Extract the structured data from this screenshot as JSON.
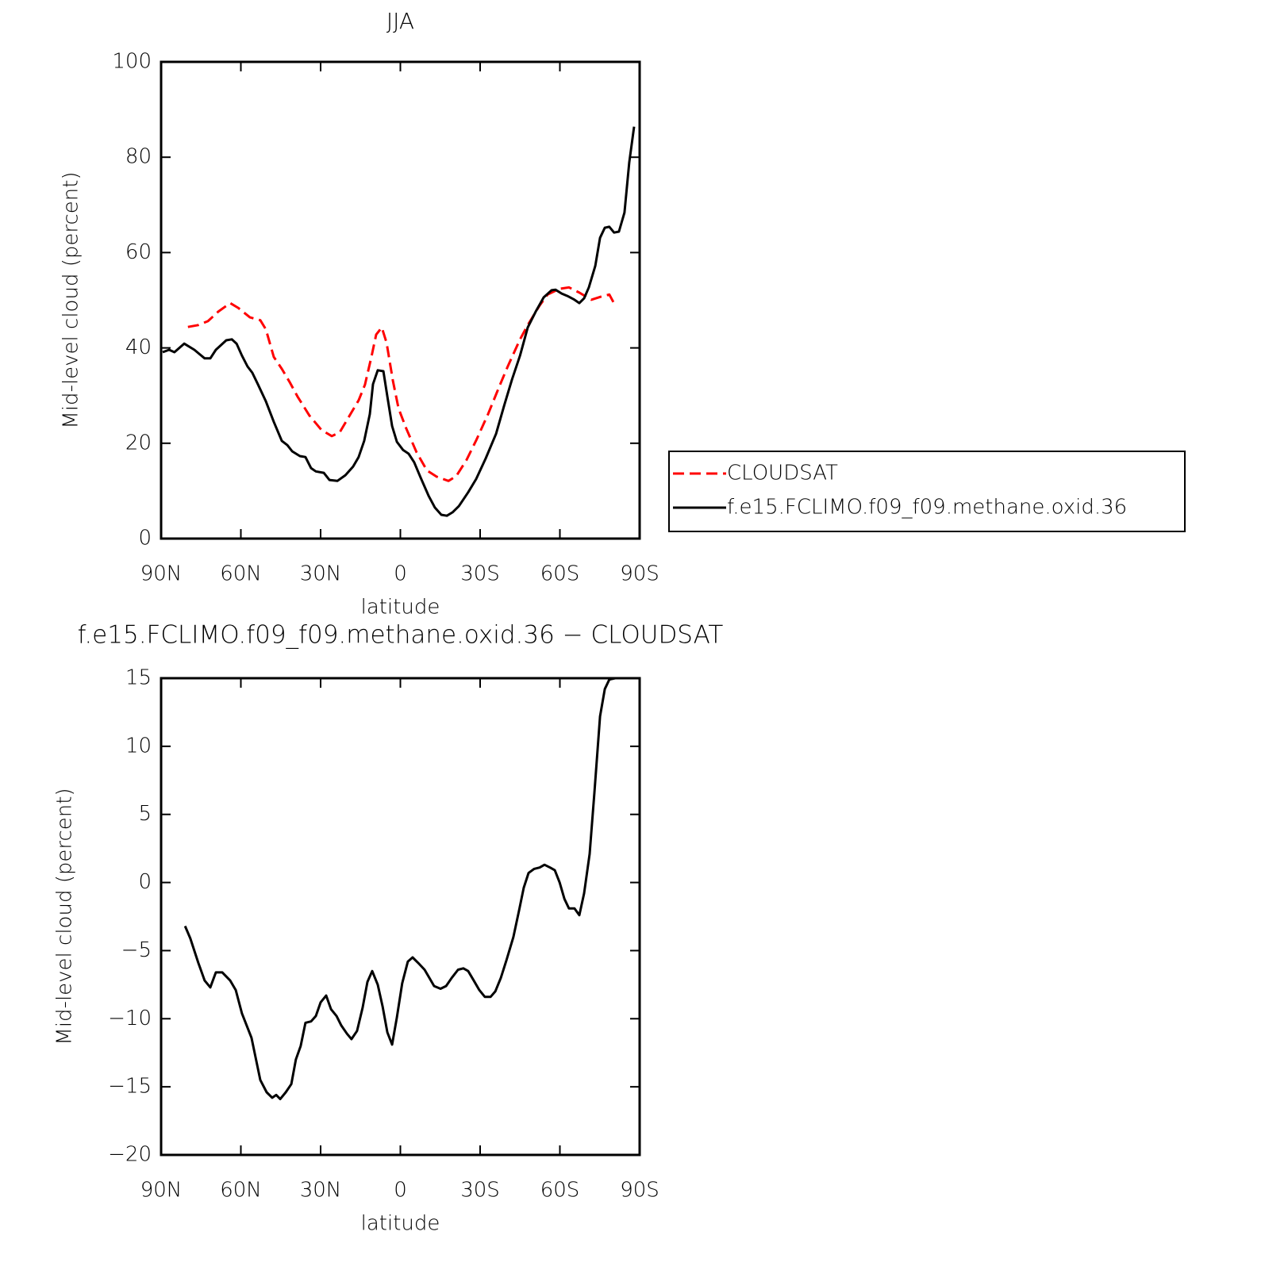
{
  "chart_data": [
    {
      "type": "line",
      "title": "JJA",
      "xlabel": "latitude",
      "ylabel": "Mid-level cloud (percent)",
      "xlim": [
        90,
        -90
      ],
      "xticks": [
        {
          "value": 90,
          "label": "90N"
        },
        {
          "value": 60,
          "label": "60N"
        },
        {
          "value": 30,
          "label": "30N"
        },
        0,
        {
          "value": -30,
          "label": "30S"
        },
        {
          "value": -60,
          "label": "60S"
        },
        {
          "value": -90,
          "label": "90S"
        }
      ],
      "ylim": [
        0,
        100
      ],
      "yticks": [
        0,
        20,
        40,
        60,
        80,
        100
      ],
      "legend": "right",
      "series": [
        {
          "name": "CLOUDSAT",
          "color": "#ff0000",
          "dashed": true,
          "x": [
            79.9,
            76,
            72.4,
            68.5,
            64,
            61,
            56.6,
            52.7,
            50.6,
            47.6,
            44.6,
            41.6,
            38.7,
            34.2,
            29.7,
            25.8,
            22.8,
            19.3,
            15.7,
            13.3,
            10.9,
            9.1,
            7.0,
            5.2,
            2.8,
            0.7,
            -2.2,
            -6.1,
            -10,
            -13.6,
            -18.1,
            -21,
            -24.9,
            -28.5,
            -33,
            -37.5,
            -40.4,
            -45,
            -47.9,
            -52.4,
            -55.4,
            -59.9,
            -63.4,
            -67.3,
            -71.8,
            -76.3,
            -78.6,
            -80.8
          ],
          "values": [
            44.4,
            44.8,
            45.6,
            47.6,
            49.4,
            48.4,
            46.4,
            45.8,
            43.9,
            38.1,
            35.6,
            32.8,
            29.8,
            25.8,
            22.8,
            21.5,
            22.3,
            25.6,
            29.0,
            32.3,
            38.1,
            42.8,
            44.3,
            41.1,
            33.1,
            27.3,
            23.1,
            18.1,
            14.3,
            13.0,
            12.1,
            13.1,
            16.5,
            20.6,
            26.1,
            32.3,
            36.1,
            41.8,
            44.8,
            48.9,
            51.2,
            52.4,
            52.7,
            51.6,
            50.1,
            50.9,
            51.2,
            48.9
          ]
        },
        {
          "name": "f.e15.FCLIMO.f09_f09.methane.oxid.36",
          "color": "#000000",
          "dashed": false,
          "x": [
            89.4,
            87,
            85,
            81.3,
            77.5,
            73.6,
            71.5,
            69.4,
            65.5,
            63.4,
            61.6,
            59.6,
            57.5,
            55.7,
            53.6,
            50.6,
            47.6,
            44.6,
            42.5,
            40.7,
            37.8,
            35.7,
            33.6,
            31.8,
            28.8,
            26.7,
            23.7,
            20.7,
            17.8,
            15.7,
            13.6,
            11.5,
            10.3,
            8.5,
            6.4,
            4.9,
            3.1,
            1.3,
            -1.0,
            -3.1,
            -5.2,
            -7.6,
            -10.6,
            -13,
            -15.4,
            -17.5,
            -19.6,
            -22,
            -25.5,
            -28.5,
            -32.1,
            -36,
            -39,
            -42,
            -45,
            -47.9,
            -50.9,
            -53.9,
            -56.9,
            -58.4,
            -60.7,
            -62.8,
            -65.2,
            -67.3,
            -69.1,
            -70.9,
            -73.3,
            -75.1,
            -76.9,
            -78.6,
            -80.4,
            -82.2,
            -84.3,
            -86.1,
            -87.9
          ],
          "values": [
            39.1,
            39.6,
            39.1,
            40.9,
            39.6,
            37.8,
            37.8,
            39.6,
            41.6,
            41.8,
            40.9,
            38.4,
            36.1,
            34.8,
            32.4,
            28.8,
            24.5,
            20.5,
            19.6,
            18.3,
            17.3,
            17.1,
            14.8,
            14.1,
            13.8,
            12.3,
            12.1,
            13.3,
            15.1,
            17.1,
            20.5,
            26.1,
            32.4,
            35.3,
            35.1,
            29.8,
            23.6,
            20.3,
            18.6,
            17.8,
            16.0,
            12.8,
            9.0,
            6.5,
            5.0,
            4.8,
            5.5,
            6.8,
            9.7,
            12.5,
            16.8,
            22.0,
            27.8,
            33.4,
            38.4,
            44.3,
            47.6,
            50.6,
            52.1,
            52.2,
            51.4,
            50.9,
            50.2,
            49.4,
            50.4,
            52.7,
            57.2,
            63.1,
            65.2,
            65.4,
            64.2,
            64.4,
            68.4,
            78.9,
            86.4
          ]
        }
      ]
    },
    {
      "type": "line",
      "title": "f.e15.FCLIMO.f09_f09.methane.oxid.36 − CLOUDSAT",
      "xlabel": "latitude",
      "ylabel": "Mid-level cloud (percent)",
      "xlim": [
        90,
        -90
      ],
      "xticks": [
        {
          "value": 90,
          "label": "90N"
        },
        {
          "value": 60,
          "label": "60N"
        },
        {
          "value": 30,
          "label": "30N"
        },
        0,
        {
          "value": -30,
          "label": "30S"
        },
        {
          "value": -60,
          "label": "60S"
        },
        {
          "value": -90,
          "label": "90S"
        }
      ],
      "ylim": [
        -20,
        15
      ],
      "yticks": [
        {
          "value": -20,
          "label": "−20"
        },
        {
          "value": -15,
          "label": "−15"
        },
        {
          "value": -10,
          "label": "−10"
        },
        {
          "value": -5,
          "label": "−5"
        },
        0,
        5,
        10,
        15
      ],
      "series": [
        {
          "color": "#000000",
          "dashed": false,
          "x": [
            81,
            79,
            76,
            73.6,
            71.5,
            69.4,
            67,
            64,
            61.9,
            59.6,
            56,
            52.7,
            50.3,
            48.2,
            46.7,
            45.2,
            43.1,
            41,
            39.3,
            37.5,
            35.7,
            33.6,
            31.8,
            30,
            27.9,
            26.1,
            24,
            22.2,
            20.1,
            18.4,
            16.3,
            14.2,
            12.4,
            10.6,
            8.5,
            6.7,
            4.9,
            3.1,
            1.3,
            -0.7,
            -2.8,
            -4.6,
            -6.7,
            -9.1,
            -10.9,
            -12.7,
            -15.1,
            -17.2,
            -19.3,
            -21.7,
            -23.7,
            -25.5,
            -27.6,
            -29.7,
            -31.8,
            -33.9,
            -35.7,
            -37.8,
            -39.9,
            -42.5,
            -44.6,
            -46.4,
            -48.2,
            -50.3,
            -52.4,
            -54.2,
            -56.3,
            -58.1,
            -59.9,
            -61.7,
            -63.4,
            -65.5,
            -67.3,
            -69.1,
            -71.2,
            -73,
            -75.1,
            -76.9,
            -78.6,
            -80.8
          ],
          "values": [
            -3.2,
            -4.1,
            -5.9,
            -7.2,
            -7.7,
            -6.6,
            -6.6,
            -7.2,
            -7.9,
            -9.6,
            -11.4,
            -14.5,
            -15.4,
            -15.8,
            -15.6,
            -15.9,
            -15.4,
            -14.8,
            -13,
            -12,
            -10.3,
            -10.2,
            -9.8,
            -8.8,
            -8.3,
            -9.3,
            -9.8,
            -10.5,
            -11.1,
            -11.5,
            -10.9,
            -9.2,
            -7.3,
            -6.5,
            -7.5,
            -9.1,
            -11.0,
            -11.9,
            -9.9,
            -7.4,
            -5.8,
            -5.5,
            -5.9,
            -6.4,
            -7,
            -7.6,
            -7.8,
            -7.6,
            -7,
            -6.4,
            -6.3,
            -6.5,
            -7.2,
            -7.9,
            -8.4,
            -8.4,
            -8,
            -7,
            -5.7,
            -4,
            -2.1,
            -0.4,
            0.7,
            1,
            1.1,
            1.3,
            1.1,
            0.9,
            0,
            -1.2,
            -1.9,
            -1.9,
            -2.4,
            -0.8,
            2.1,
            6.6,
            12.2,
            14.2,
            14.9,
            15
          ]
        }
      ]
    }
  ]
}
